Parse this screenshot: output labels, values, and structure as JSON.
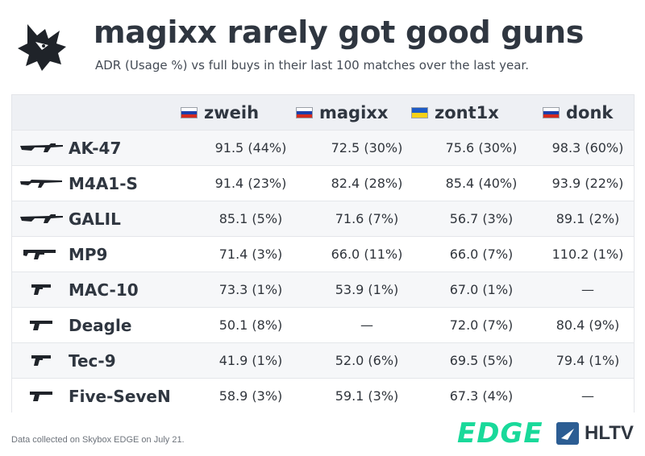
{
  "header": {
    "title": "magixx rarely got good guns",
    "subtitle": "ADR (Usage %) vs full buys in their last 100 matches over the last year."
  },
  "chart_data": {
    "type": "table",
    "columns": [
      {
        "name": "zweih",
        "flag_colors": [
          "#ffffff",
          "#1c3faa",
          "#d52b1e"
        ],
        "flag_icon": "russia-flag-icon"
      },
      {
        "name": "magixx",
        "flag_colors": [
          "#ffffff",
          "#1c3faa",
          "#d52b1e"
        ],
        "flag_icon": "russia-flag-icon"
      },
      {
        "name": "zont1x",
        "flag_colors": [
          "#1e5bc6",
          "#f7d117"
        ],
        "flag_icon": "ukraine-flag-icon"
      },
      {
        "name": "donk",
        "flag_colors": [
          "#ffffff",
          "#1c3faa",
          "#d52b1e"
        ],
        "flag_icon": "russia-flag-icon"
      }
    ],
    "rows": [
      {
        "weapon": "AK-47",
        "icon": "rifle-icon",
        "values": [
          "91.5 (44%)",
          "72.5 (30%)",
          "75.6 (30%)",
          "98.3 (60%)"
        ]
      },
      {
        "weapon": "M4A1-S",
        "icon": "silenced-rifle-icon",
        "values": [
          "91.4 (23%)",
          "82.4 (28%)",
          "85.4 (40%)",
          "93.9 (22%)"
        ]
      },
      {
        "weapon": "GALIL",
        "icon": "rifle-icon",
        "values": [
          "85.1 (5%)",
          "71.6 (7%)",
          "56.7 (3%)",
          "89.1 (2%)"
        ]
      },
      {
        "weapon": "MP9",
        "icon": "smg-icon",
        "values": [
          "71.4 (3%)",
          "66.0 (11%)",
          "66.0 (7%)",
          "110.2 (1%)"
        ]
      },
      {
        "weapon": "MAC-10",
        "icon": "machine-pistol-icon",
        "values": [
          "73.3 (1%)",
          "53.9 (1%)",
          "67.0 (1%)",
          "—"
        ]
      },
      {
        "weapon": "Deagle",
        "icon": "pistol-icon",
        "values": [
          "50.1 (8%)",
          "—",
          "72.0 (7%)",
          "80.4 (9%)"
        ]
      },
      {
        "weapon": "Tec-9",
        "icon": "machine-pistol-icon",
        "values": [
          "41.9 (1%)",
          "52.0 (6%)",
          "69.5 (5%)",
          "79.4 (1%)"
        ]
      },
      {
        "weapon": "Five-SeveN",
        "icon": "pistol-icon",
        "values": [
          "58.9 (3%)",
          "59.1 (3%)",
          "67.3 (4%)",
          "—"
        ]
      }
    ]
  },
  "footer": {
    "note": "Data collected on Skybox EDGE on July 21.",
    "edge_logo": "EDGE",
    "hltv_logo": "HLTV"
  },
  "colors": {
    "title": "#2f3640",
    "header_bg": "#eef0f4",
    "edge_green": "#19d99a",
    "hltv_blue": "#2c5d93"
  }
}
